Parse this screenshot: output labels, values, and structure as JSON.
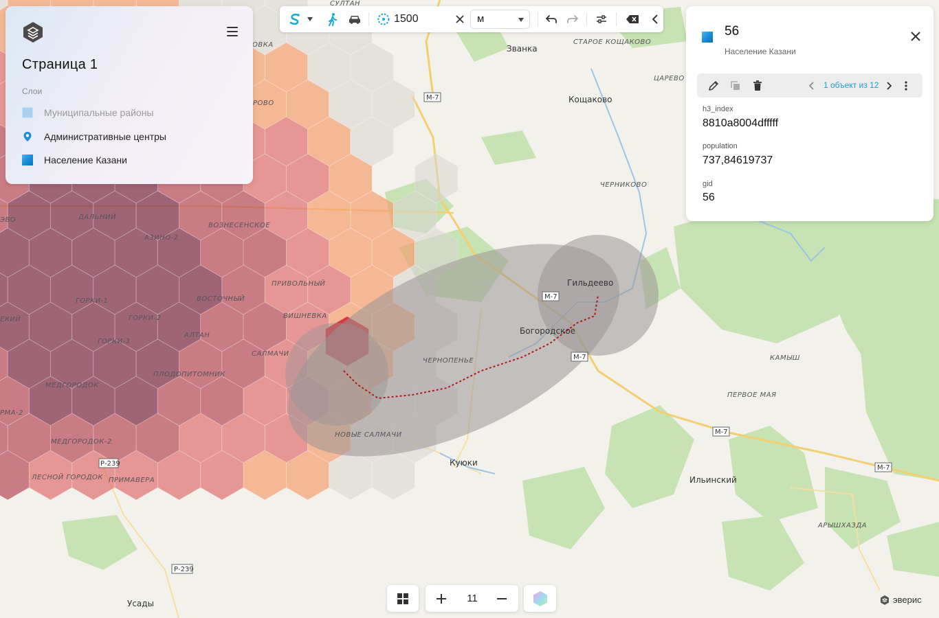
{
  "layers_panel": {
    "page_title": "Страница 1",
    "layers_caption": "Слои",
    "layers": [
      {
        "label": "Муниципальные районы",
        "color": "#9ec9ee",
        "icon": "polygon-swatch-icon",
        "muted": true
      },
      {
        "label": "Административные центры",
        "color": "#1a8fd8",
        "icon": "location-pin-icon",
        "muted": false
      },
      {
        "label": "Население Казани",
        "color": "#1a8fd8",
        "icon": "polygon-swatch-icon",
        "muted": false
      }
    ]
  },
  "toolbar": {
    "mode_icon": "isochrone-icon",
    "walk_icon": "walking-icon",
    "car_icon": "car-icon",
    "buffer_icon": "buffer-icon",
    "distance_value": "1500",
    "unit_value": "м",
    "undo_icon": "undo-icon",
    "redo_icon": "redo-icon",
    "settings_icon": "sliders-icon",
    "clear_icon": "backspace-icon",
    "collapse_icon": "chevron-left-icon",
    "accent_color": "#1aa8d8"
  },
  "info_panel": {
    "title": "56",
    "subtitle": "Население Казани",
    "swatch_color": "#1a8fd8",
    "pager_text": "1 объект из 12",
    "attributes": [
      {
        "key": "h3_index",
        "value": "8810a8004dfffff"
      },
      {
        "key": "population",
        "value": "737,84619737"
      },
      {
        "key": "gid",
        "value": "56"
      }
    ]
  },
  "bottom_controls": {
    "zoom_level": "11",
    "grid_icon": "grid-icon",
    "zoom_in_icon": "plus-icon",
    "zoom_out_icon": "minus-icon",
    "basemap_icon": "basemap-gradient-icon"
  },
  "watermark": "эверис",
  "map": {
    "places": [
      "Званка",
      "Кощаково",
      "Гильдеево",
      "Богородское",
      "Куюки",
      "Ильинский",
      "Усады"
    ],
    "districts": [
      "СТАРОЕ КОЩАКОВО",
      "ЦАРЕВО",
      "ЧЕРНИКОВО",
      "КАМЫШ",
      "ПЕРВОЕ МАЯ",
      "АРЫШХАЗДА",
      "ЧЕРНОПЕНЬЕ",
      "НОВЫЕ САЛМАЧИ",
      "ВОЗНЕСЕНСКОЕ",
      "ДАЛЬНИЙ",
      "АЗИНО-2",
      "ПРИВОЛЬНЫЙ",
      "ВОСТОЧНЫЙ",
      "ВИШНЕВКА",
      "ГОРКИ-1",
      "ГОРКИ-2",
      "ГОРКИ-3",
      "АЛТАН",
      "САЛМАЧИ",
      "ПЛОДОПИТОМНИК",
      "МЕДГОРОДОК",
      "МЕДГОРОДОК-2",
      "ПРИМАВЕРА",
      "ЛЕСНОЙ ГОРОДОК",
      "СУЛТАН",
      "ОВКА",
      "РОВО",
      "ЭВО",
      "ЕКИЙ",
      "РМА-2"
    ],
    "road_shields": [
      "М-7",
      "Р-239"
    ],
    "colors": {
      "low": "#d8d3d2",
      "mid": "#f4a070",
      "high": "#e07070",
      "higher": "#b84a5a",
      "highest": "#7a2a45",
      "selected": "#d42a35",
      "buffer": "#9a9595"
    }
  }
}
